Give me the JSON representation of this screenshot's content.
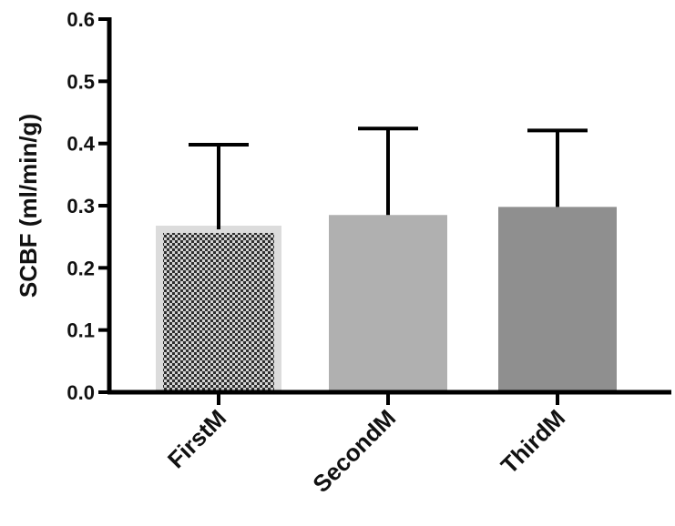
{
  "chart_data": {
    "type": "bar",
    "title": "",
    "xlabel": "",
    "ylabel": "SCBF (ml/min/g)",
    "categories": [
      "FirstM",
      "SecondM",
      "ThirdM"
    ],
    "values": [
      0.262,
      0.285,
      0.298
    ],
    "error_upper": [
      0.398,
      0.424,
      0.421
    ],
    "ylim": [
      0,
      0.6
    ],
    "yticks": [
      "0.0",
      "0.1",
      "0.2",
      "0.3",
      "0.4",
      "0.5",
      "0.6"
    ],
    "grid": false,
    "legend": "none",
    "bar_colors": [
      "#3a3a3a",
      "#b0b0b0",
      "#8f8f8f"
    ],
    "bar_patterns": [
      "checkered",
      "solid",
      "solid"
    ]
  }
}
